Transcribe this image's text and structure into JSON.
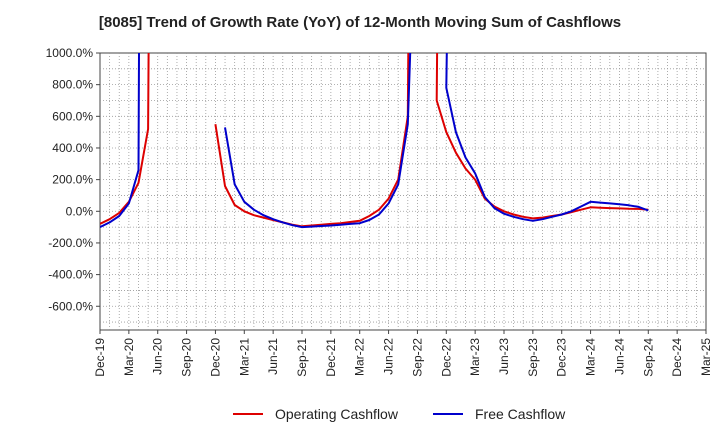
{
  "chart_data": {
    "type": "line",
    "title": "[8085]  Trend of Growth Rate (YoY) of 12-Month Moving Sum of Cashflows",
    "xlabel": "",
    "ylabel": "",
    "ylim": [
      -750,
      1000
    ],
    "y_ticks": [
      1000,
      800,
      600,
      400,
      200,
      0,
      -200,
      -400,
      -600
    ],
    "y_tick_labels": [
      "1000.0%",
      "800.0%",
      "600.0%",
      "400.0%",
      "200.0%",
      "0.0%",
      "-200.0%",
      "-400.0%",
      "-600.0%"
    ],
    "x_tick_labels": [
      "Dec-19",
      "Mar-20",
      "Jun-20",
      "Sep-20",
      "Dec-20",
      "Mar-21",
      "Jun-21",
      "Sep-21",
      "Dec-21",
      "Mar-22",
      "Jun-22",
      "Sep-22",
      "Dec-22",
      "Mar-23",
      "Jun-23",
      "Sep-23",
      "Dec-23",
      "Mar-24",
      "Jun-24",
      "Sep-24",
      "Dec-24",
      "Mar-25"
    ],
    "grid": true,
    "legend_position": "bottom",
    "series": [
      {
        "name": "Operating Cashflow",
        "color": "#dd0000",
        "points": [
          [
            "Dec-19",
            -80
          ],
          [
            "Jan-20",
            -50
          ],
          [
            "Feb-20",
            -10
          ],
          [
            "Mar-20",
            60
          ],
          [
            "Apr-20",
            180
          ],
          [
            "May-20",
            520
          ],
          [
            "May-20b",
            1000
          ],
          null,
          [
            "Dec-20",
            550
          ],
          [
            "Jan-21",
            160
          ],
          [
            "Feb-21",
            40
          ],
          [
            "Mar-21",
            0
          ],
          [
            "Apr-21",
            -25
          ],
          [
            "May-21",
            -40
          ],
          [
            "Jun-21",
            -55
          ],
          [
            "Jul-21",
            -70
          ],
          [
            "Aug-21",
            -85
          ],
          [
            "Sep-21",
            -95
          ],
          [
            "Oct-21",
            -90
          ],
          [
            "Nov-21",
            -85
          ],
          [
            "Dec-21",
            -80
          ],
          [
            "Jan-22",
            -75
          ],
          [
            "Feb-22",
            -68
          ],
          [
            "Mar-22",
            -60
          ],
          [
            "Apr-22",
            -30
          ],
          [
            "May-22",
            10
          ],
          [
            "Jun-22",
            80
          ],
          [
            "Jul-22",
            200
          ],
          [
            "Aug-22",
            600
          ],
          [
            "Aug-22b",
            1000
          ],
          null,
          [
            "Nov-22b",
            1000
          ],
          [
            "Nov-22",
            700
          ],
          [
            "Dec-22",
            500
          ],
          [
            "Jan-23",
            370
          ],
          [
            "Feb-23",
            270
          ],
          [
            "Mar-23",
            200
          ],
          [
            "Apr-23",
            80
          ],
          [
            "May-23",
            30
          ],
          [
            "Jun-23",
            0
          ],
          [
            "Jul-23",
            -20
          ],
          [
            "Aug-23",
            -35
          ],
          [
            "Sep-23",
            -45
          ],
          [
            "Oct-23",
            -40
          ],
          [
            "Nov-23",
            -30
          ],
          [
            "Dec-23",
            -20
          ],
          [
            "Jan-24",
            -5
          ],
          [
            "Feb-24",
            10
          ],
          [
            "Mar-24",
            25
          ],
          [
            "Apr-24",
            22
          ],
          [
            "May-24",
            20
          ],
          [
            "Jun-24",
            18
          ],
          [
            "Jul-24",
            16
          ],
          [
            "Aug-24",
            15
          ],
          [
            "Sep-24",
            10
          ]
        ]
      },
      {
        "name": "Free Cashflow",
        "color": "#0000cc",
        "points": [
          [
            "Dec-19",
            -100
          ],
          [
            "Jan-20",
            -70
          ],
          [
            "Feb-20",
            -30
          ],
          [
            "Mar-20",
            50
          ],
          [
            "Apr-20",
            260
          ],
          [
            "Apr-20b",
            1000
          ],
          null,
          [
            "Jan-21",
            530
          ],
          [
            "Feb-21",
            170
          ],
          [
            "Mar-21",
            60
          ],
          [
            "Apr-21",
            10
          ],
          [
            "May-21",
            -25
          ],
          [
            "Jun-21",
            -50
          ],
          [
            "Jul-21",
            -70
          ],
          [
            "Aug-21",
            -88
          ],
          [
            "Sep-21",
            -100
          ],
          [
            "Oct-21",
            -97
          ],
          [
            "Nov-21",
            -93
          ],
          [
            "Dec-21",
            -90
          ],
          [
            "Jan-22",
            -85
          ],
          [
            "Feb-22",
            -80
          ],
          [
            "Mar-22",
            -75
          ],
          [
            "Apr-22",
            -55
          ],
          [
            "May-22",
            -20
          ],
          [
            "Jun-22",
            50
          ],
          [
            "Jul-22",
            170
          ],
          [
            "Aug-22",
            550
          ],
          [
            "Aug-22c",
            1000
          ],
          null,
          [
            "Dec-22b",
            1000
          ],
          [
            "Dec-22",
            780
          ],
          [
            "Jan-23",
            500
          ],
          [
            "Feb-23",
            340
          ],
          [
            "Mar-23",
            240
          ],
          [
            "Apr-23",
            90
          ],
          [
            "May-23",
            20
          ],
          [
            "Jun-23",
            -15
          ],
          [
            "Jul-23",
            -35
          ],
          [
            "Aug-23",
            -50
          ],
          [
            "Sep-23",
            -60
          ],
          [
            "Oct-23",
            -50
          ],
          [
            "Nov-23",
            -35
          ],
          [
            "Dec-23",
            -20
          ],
          [
            "Jan-24",
            0
          ],
          [
            "Feb-24",
            30
          ],
          [
            "Mar-24",
            60
          ],
          [
            "Apr-24",
            55
          ],
          [
            "May-24",
            50
          ],
          [
            "Jun-24",
            45
          ],
          [
            "Jul-24",
            38
          ],
          [
            "Aug-24",
            28
          ],
          [
            "Sep-24",
            5
          ]
        ]
      }
    ]
  }
}
